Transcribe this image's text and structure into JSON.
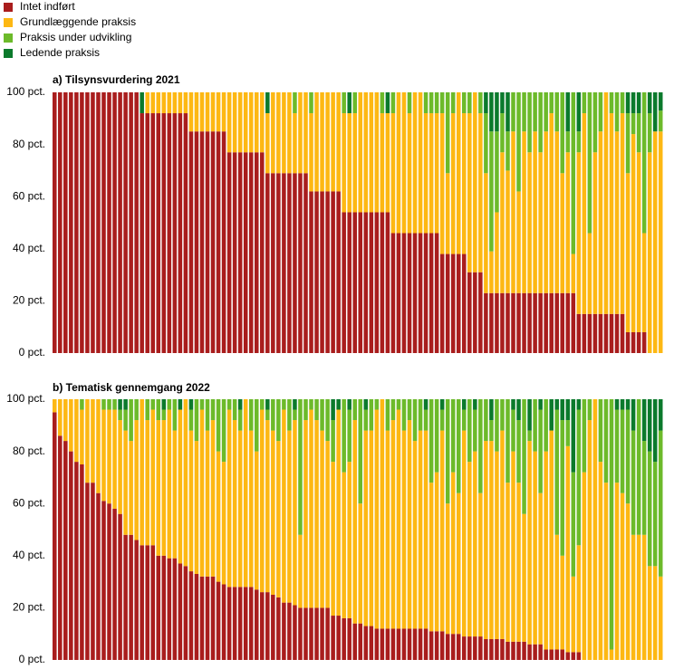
{
  "chart_data": [
    {
      "type": "stacked_bar",
      "title": "a) Tilsynsvurdering 2021",
      "ylim": [
        0,
        100
      ],
      "yticks": [
        {
          "value": 0,
          "label": "0 pct."
        },
        {
          "value": 20,
          "label": "20 pct."
        },
        {
          "value": 40,
          "label": "40 pct."
        },
        {
          "value": 60,
          "label": "60 pct."
        },
        {
          "value": 80,
          "label": "80 pct."
        },
        {
          "value": 100,
          "label": "100 pct."
        }
      ],
      "series": [
        {
          "name": "Intet indført",
          "color": "#a91d1d",
          "values": [
            100,
            100,
            100,
            100,
            100,
            100,
            100,
            100,
            100,
            100,
            100,
            100,
            100,
            100,
            100,
            100,
            92,
            92,
            92,
            92,
            92,
            92,
            92,
            92,
            92,
            85,
            85,
            85,
            85,
            85,
            85,
            85,
            77,
            77,
            77,
            77,
            77,
            77,
            77,
            69,
            69,
            69,
            69,
            69,
            69,
            69,
            69,
            62,
            62,
            62,
            62,
            62,
            62,
            54,
            54,
            54,
            54,
            54,
            54,
            54,
            54,
            54,
            46,
            46,
            46,
            46,
            46,
            46,
            46,
            46,
            46,
            38,
            38,
            38,
            38,
            38,
            31,
            31,
            31,
            23,
            23,
            23,
            23,
            23,
            23,
            23,
            23,
            23,
            23,
            23,
            23,
            23,
            23,
            23,
            23,
            23,
            15,
            15,
            15,
            15,
            15,
            15,
            15,
            15,
            15,
            8,
            8,
            8,
            8,
            0,
            0,
            0
          ]
        },
        {
          "name": "Grundlæggende praksis",
          "color": "#fdb813",
          "values": [
            0,
            0,
            0,
            0,
            0,
            0,
            0,
            0,
            0,
            0,
            0,
            0,
            0,
            0,
            0,
            0,
            0,
            8,
            8,
            8,
            8,
            8,
            8,
            8,
            8,
            15,
            15,
            15,
            15,
            15,
            15,
            15,
            23,
            23,
            23,
            23,
            23,
            23,
            23,
            23,
            31,
            31,
            31,
            31,
            23,
            31,
            31,
            30,
            38,
            38,
            38,
            38,
            38,
            38,
            38,
            38,
            46,
            46,
            46,
            46,
            38,
            38,
            46,
            54,
            54,
            46,
            54,
            54,
            46,
            46,
            46,
            54,
            31,
            54,
            62,
            54,
            61,
            69,
            61,
            46,
            16,
            31,
            54,
            47,
            62,
            39,
            62,
            54,
            62,
            54,
            62,
            69,
            62,
            46,
            54,
            15,
            62,
            77,
            31,
            62,
            70,
            85,
            77,
            70,
            77,
            61,
            76,
            69,
            38,
            77,
            85,
            85
          ]
        },
        {
          "name": "Praksis under udvikling",
          "color": "#6cba2a",
          "values": [
            0,
            0,
            0,
            0,
            0,
            0,
            0,
            0,
            0,
            0,
            0,
            0,
            0,
            0,
            0,
            0,
            0,
            0,
            0,
            0,
            0,
            0,
            0,
            0,
            0,
            0,
            0,
            0,
            0,
            0,
            0,
            0,
            0,
            0,
            0,
            0,
            0,
            0,
            0,
            0,
            0,
            0,
            0,
            0,
            8,
            0,
            0,
            8,
            0,
            0,
            0,
            0,
            0,
            8,
            0,
            8,
            0,
            0,
            0,
            0,
            8,
            0,
            8,
            0,
            0,
            8,
            0,
            0,
            8,
            8,
            8,
            8,
            31,
            8,
            0,
            8,
            8,
            0,
            8,
            23,
            46,
            31,
            15,
            15,
            15,
            38,
            15,
            23,
            15,
            23,
            15,
            8,
            15,
            31,
            8,
            62,
            8,
            8,
            54,
            23,
            15,
            0,
            8,
            15,
            8,
            23,
            8,
            15,
            54,
            15,
            0,
            8
          ]
        },
        {
          "name": "Ledende praksis",
          "color": "#0b7a2c",
          "values": [
            0,
            0,
            0,
            0,
            0,
            0,
            0,
            0,
            0,
            0,
            0,
            0,
            0,
            0,
            0,
            0,
            8,
            0,
            0,
            0,
            0,
            0,
            0,
            0,
            0,
            0,
            0,
            0,
            0,
            0,
            0,
            0,
            0,
            0,
            0,
            0,
            0,
            0,
            0,
            8,
            0,
            0,
            0,
            0,
            0,
            0,
            0,
            0,
            0,
            0,
            0,
            0,
            0,
            0,
            8,
            0,
            0,
            0,
            0,
            0,
            0,
            8,
            0,
            0,
            0,
            0,
            0,
            0,
            0,
            0,
            0,
            0,
            0,
            0,
            0,
            0,
            0,
            0,
            0,
            8,
            15,
            15,
            8,
            15,
            0,
            0,
            0,
            0,
            0,
            0,
            0,
            0,
            0,
            0,
            15,
            0,
            15,
            0,
            0,
            0,
            0,
            0,
            0,
            0,
            0,
            8,
            8,
            8,
            0,
            8,
            15,
            7
          ]
        }
      ]
    },
    {
      "type": "stacked_bar",
      "title": "b) Tematisk gennemgang 2022",
      "ylim": [
        0,
        100
      ],
      "yticks": [
        {
          "value": 0,
          "label": "0 pct."
        },
        {
          "value": 20,
          "label": "20 pct."
        },
        {
          "value": 40,
          "label": "40 pct."
        },
        {
          "value": 60,
          "label": "60 pct."
        },
        {
          "value": 80,
          "label": "80 pct."
        },
        {
          "value": 100,
          "label": "100 pct."
        }
      ],
      "series": [
        {
          "values": [
            95,
            86,
            84,
            80,
            76,
            75,
            68,
            68,
            64,
            61,
            60,
            58,
            56,
            48,
            48,
            46,
            44,
            44,
            44,
            40,
            40,
            39,
            39,
            37,
            36,
            34,
            33,
            32,
            32,
            32,
            30,
            29,
            28,
            28,
            28,
            28,
            28,
            27,
            26,
            26,
            25,
            24,
            22,
            22,
            21,
            20,
            20,
            20,
            20,
            20,
            20,
            17,
            17,
            16,
            16,
            14,
            14,
            13,
            13,
            12,
            12,
            12,
            12,
            12,
            12,
            12,
            12,
            12,
            12,
            11,
            11,
            11,
            10,
            10,
            10,
            9,
            9,
            9,
            9,
            8,
            8,
            8,
            8,
            7,
            7,
            7,
            7,
            6,
            6,
            6,
            4,
            4,
            4,
            4,
            3,
            3,
            3,
            0,
            0,
            0,
            0,
            0,
            0,
            0,
            0,
            0,
            0,
            0,
            0,
            0,
            0,
            0
          ]
        },
        {
          "values": [
            5,
            14,
            16,
            20,
            24,
            21,
            32,
            32,
            36,
            35,
            36,
            38,
            36,
            40,
            36,
            46,
            56,
            48,
            52,
            52,
            52,
            57,
            49,
            59,
            64,
            54,
            51,
            64,
            56,
            60,
            50,
            47,
            68,
            64,
            60,
            72,
            60,
            53,
            70,
            66,
            63,
            60,
            74,
            66,
            71,
            28,
            72,
            76,
            72,
            68,
            64,
            59,
            79,
            56,
            60,
            78,
            46,
            75,
            75,
            84,
            88,
            76,
            80,
            84,
            76,
            80,
            72,
            76,
            76,
            57,
            61,
            77,
            50,
            62,
            54,
            79,
            67,
            71,
            55,
            76,
            76,
            72,
            80,
            61,
            73,
            61,
            49,
            78,
            74,
            58,
            76,
            84,
            44,
            36,
            79,
            29,
            41,
            72,
            92,
            100,
            76,
            68,
            4,
            68,
            64,
            60,
            48,
            48,
            48,
            36,
            36,
            32
          ]
        },
        {
          "values": [
            0,
            0,
            0,
            0,
            0,
            4,
            0,
            0,
            0,
            4,
            4,
            4,
            4,
            8,
            16,
            8,
            0,
            8,
            4,
            8,
            4,
            4,
            12,
            0,
            0,
            8,
            16,
            4,
            12,
            8,
            20,
            24,
            4,
            8,
            8,
            0,
            12,
            20,
            4,
            4,
            12,
            16,
            4,
            12,
            4,
            52,
            8,
            4,
            8,
            12,
            16,
            16,
            0,
            28,
            20,
            8,
            40,
            8,
            12,
            4,
            0,
            12,
            8,
            4,
            12,
            8,
            16,
            12,
            8,
            32,
            28,
            8,
            40,
            28,
            36,
            8,
            24,
            16,
            36,
            16,
            8,
            20,
            12,
            32,
            16,
            24,
            44,
            4,
            20,
            32,
            20,
            0,
            48,
            52,
            10,
            40,
            52,
            28,
            8,
            0,
            24,
            32,
            96,
            28,
            32,
            36,
            40,
            52,
            36,
            44,
            40,
            56
          ]
        },
        {
          "values": [
            0,
            0,
            0,
            0,
            0,
            0,
            0,
            0,
            0,
            0,
            0,
            0,
            4,
            4,
            0,
            0,
            0,
            0,
            0,
            0,
            4,
            0,
            0,
            4,
            0,
            4,
            0,
            0,
            0,
            0,
            0,
            0,
            0,
            0,
            4,
            0,
            0,
            0,
            0,
            4,
            0,
            0,
            0,
            0,
            4,
            0,
            0,
            0,
            0,
            0,
            0,
            8,
            4,
            0,
            4,
            0,
            0,
            4,
            0,
            0,
            0,
            0,
            0,
            0,
            0,
            0,
            0,
            0,
            4,
            0,
            0,
            4,
            0,
            0,
            0,
            4,
            0,
            4,
            0,
            0,
            8,
            0,
            0,
            0,
            4,
            8,
            0,
            12,
            0,
            4,
            0,
            12,
            4,
            8,
            8,
            28,
            4,
            0,
            0,
            0,
            0,
            0,
            0,
            4,
            4,
            4,
            12,
            0,
            16,
            20,
            24,
            12
          ]
        }
      ]
    }
  ]
}
